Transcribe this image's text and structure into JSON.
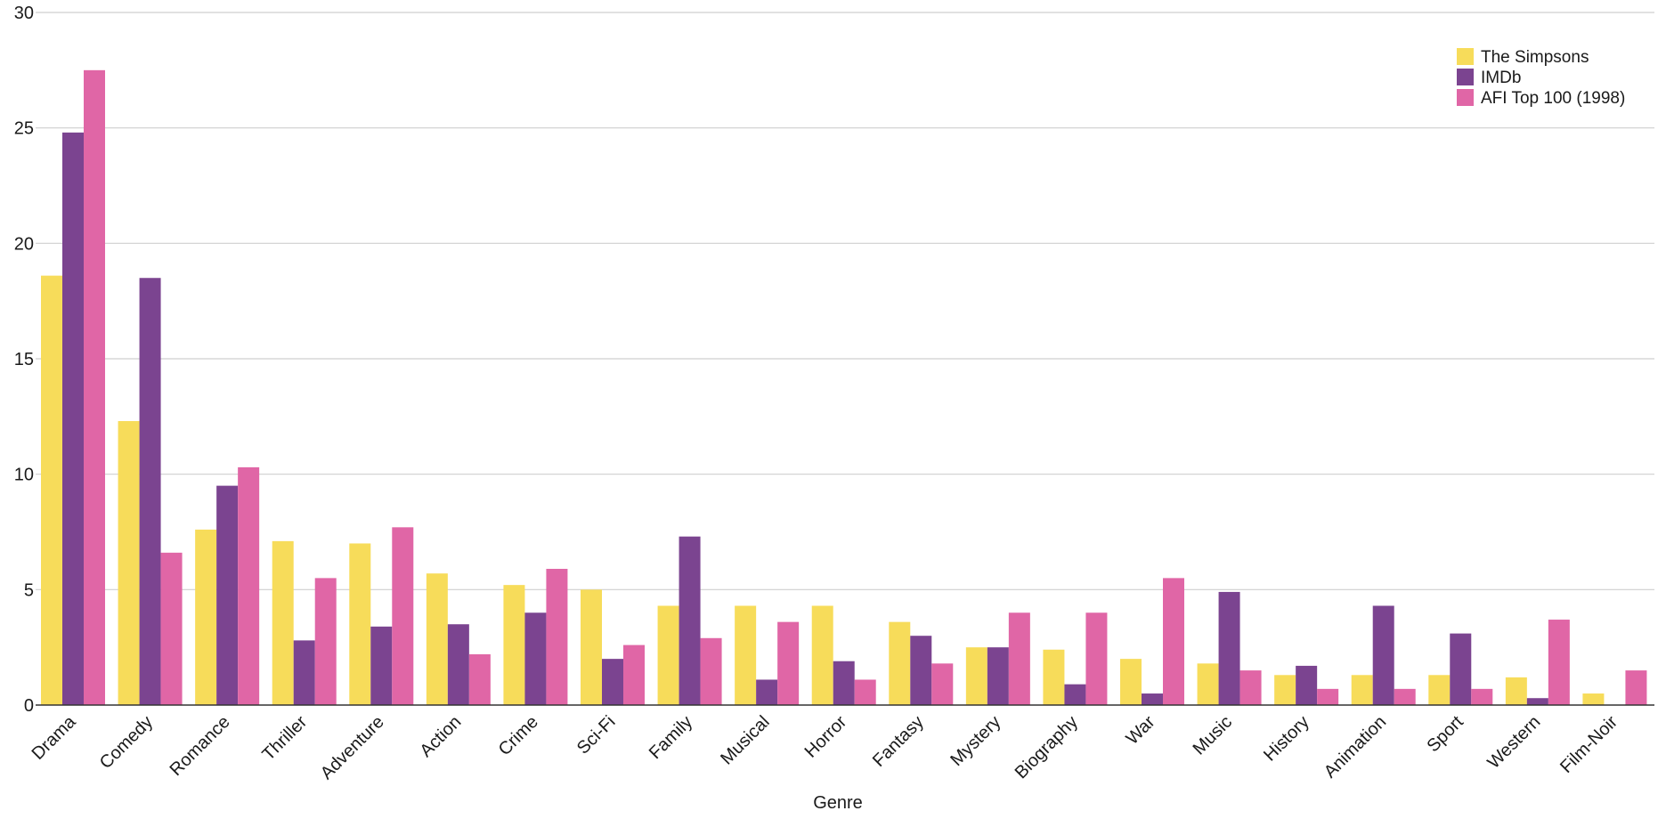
{
  "chart_data": {
    "type": "bar",
    "title": "",
    "xlabel": "Genre",
    "ylabel": "",
    "ylim": [
      0,
      30
    ],
    "yticks": [
      0,
      5,
      10,
      15,
      20,
      25,
      30
    ],
    "grid": true,
    "legend_position": "top-right",
    "categories": [
      "Drama",
      "Comedy",
      "Romance",
      "Thriller",
      "Adventure",
      "Action",
      "Crime",
      "Sci-Fi",
      "Family",
      "Musical",
      "Horror",
      "Fantasy",
      "Mystery",
      "Biography",
      "War",
      "Music",
      "History",
      "Animation",
      "Sport",
      "Western",
      "Film-Noir"
    ],
    "series": [
      {
        "name": "The Simpsons",
        "color": "#f7dc5a",
        "values": [
          18.6,
          12.3,
          7.6,
          7.1,
          7.0,
          5.7,
          5.2,
          5.0,
          4.3,
          4.3,
          4.3,
          3.6,
          2.5,
          2.4,
          2.0,
          1.8,
          1.3,
          1.3,
          1.3,
          1.2,
          0.5
        ]
      },
      {
        "name": "IMDb",
        "color": "#7b4490",
        "values": [
          24.8,
          18.5,
          9.5,
          2.8,
          3.4,
          3.5,
          4.0,
          2.0,
          7.3,
          1.1,
          1.9,
          3.0,
          2.5,
          0.9,
          0.5,
          4.9,
          1.7,
          4.3,
          3.1,
          0.3,
          0.0
        ]
      },
      {
        "name": "AFI Top 100 (1998)",
        "color": "#e066a6",
        "values": [
          27.5,
          6.6,
          10.3,
          5.5,
          7.7,
          2.2,
          5.9,
          2.6,
          2.9,
          3.6,
          1.1,
          1.8,
          4.0,
          4.0,
          5.5,
          1.5,
          0.7,
          0.7,
          0.7,
          3.7,
          1.5
        ]
      }
    ]
  }
}
